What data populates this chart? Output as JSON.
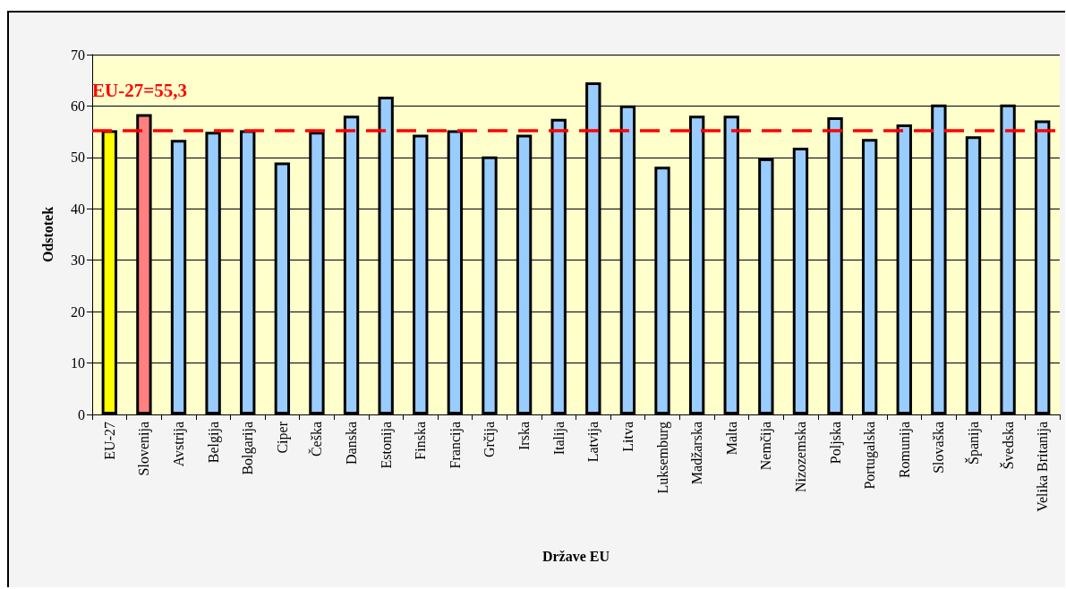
{
  "chart_data": {
    "type": "bar",
    "xlabel": "Države EU",
    "ylabel": "Odstotek",
    "categories": [
      "EU-27",
      "Slovenija",
      "Avstrija",
      "Belgija",
      "Bolgarija",
      "Ciper",
      "Češka",
      "Danska",
      "Estonija",
      "Finska",
      "Francija",
      "Grčija",
      "Irska",
      "Italija",
      "Latvija",
      "Litva",
      "Luksemburg",
      "Madžarska",
      "Malta",
      "Nemčija",
      "Nizozemska",
      "Poljska",
      "Portugalska",
      "Romunija",
      "Slovaška",
      "Španija",
      "Švedska",
      "Velika Britanija"
    ],
    "values": [
      55.3,
      58.4,
      53.4,
      55.0,
      55.3,
      49.0,
      55.0,
      58.1,
      61.8,
      54.4,
      55.3,
      50.2,
      54.4,
      57.5,
      64.6,
      60.1,
      48.2,
      58.1,
      58.1,
      49.8,
      51.9,
      57.8,
      53.6,
      56.4,
      60.3,
      54.1,
      60.3,
      57.2
    ],
    "colors": [
      "#ffff00",
      "#ff8080",
      "#99ccff",
      "#99ccff",
      "#99ccff",
      "#99ccff",
      "#99ccff",
      "#99ccff",
      "#99ccff",
      "#99ccff",
      "#99ccff",
      "#99ccff",
      "#99ccff",
      "#99ccff",
      "#99ccff",
      "#99ccff",
      "#99ccff",
      "#99ccff",
      "#99ccff",
      "#99ccff",
      "#99ccff",
      "#99ccff",
      "#99ccff",
      "#99ccff",
      "#99ccff",
      "#99ccff",
      "#99ccff",
      "#99ccff"
    ],
    "ylim": [
      0,
      70
    ],
    "yticks": [
      0,
      10,
      20,
      30,
      40,
      50,
      60,
      70
    ],
    "grid": "y",
    "ref_lines": [
      {
        "axis": "y",
        "value": 55.3,
        "label": "EU-27=55,3",
        "color": "#ff0000",
        "line_style": "dashed"
      }
    ]
  }
}
